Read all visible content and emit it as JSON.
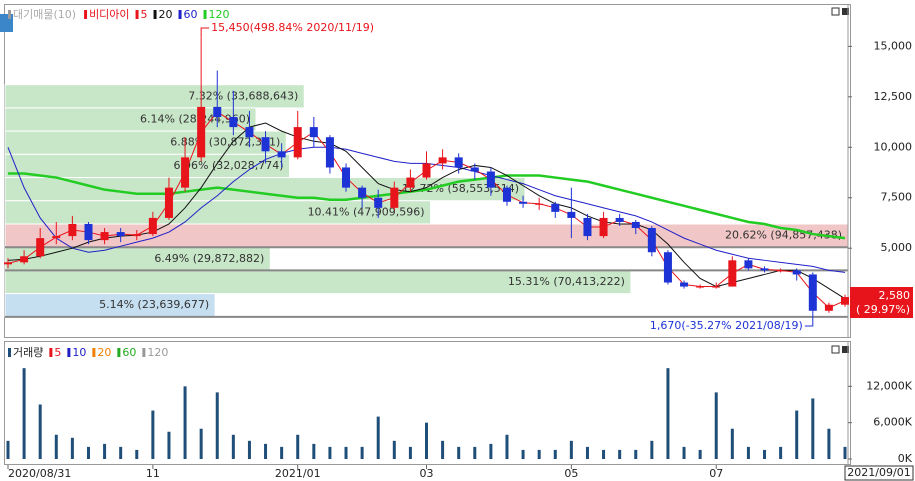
{
  "chart_data": {
    "type": "candlestick",
    "legend_title": "대기매물(10)",
    "name": "비디아이",
    "categories": [
      "2020/08/31",
      null,
      null,
      null,
      null,
      null,
      null,
      null,
      null,
      "11",
      null,
      null,
      null,
      null,
      null,
      null,
      null,
      null,
      "2021/01",
      null,
      null,
      null,
      null,
      null,
      null,
      null,
      "03",
      null,
      null,
      null,
      null,
      null,
      null,
      null,
      null,
      "05",
      null,
      null,
      null,
      null,
      null,
      null,
      null,
      null,
      "07",
      null,
      null,
      null,
      null,
      null,
      null,
      null,
      "2021/09/01"
    ],
    "candles": [
      [
        4200,
        4500,
        4000,
        4300
      ],
      [
        4300,
        4900,
        4200,
        4600
      ],
      [
        4600,
        6000,
        4500,
        5500
      ],
      [
        5500,
        6300,
        5200,
        5600
      ],
      [
        5600,
        6600,
        5400,
        6200
      ],
      [
        6200,
        6300,
        5200,
        5400
      ],
      [
        5400,
        6000,
        5200,
        5800
      ],
      [
        5800,
        6000,
        5300,
        5600
      ],
      [
        5600,
        5900,
        5400,
        5700
      ],
      [
        5700,
        6800,
        5600,
        6500
      ],
      [
        6500,
        8500,
        6400,
        8000
      ],
      [
        8000,
        10500,
        7800,
        9500
      ],
      [
        9500,
        15450,
        9300,
        12000
      ],
      [
        12000,
        13800,
        11000,
        11500
      ],
      [
        11500,
        12800,
        10600,
        11000
      ],
      [
        11000,
        11800,
        10000,
        10500
      ],
      [
        10500,
        10800,
        9200,
        9800
      ],
      [
        9800,
        10200,
        9000,
        9500
      ],
      [
        9500,
        11800,
        9400,
        11000
      ],
      [
        11000,
        11500,
        10000,
        10500
      ],
      [
        10500,
        10600,
        8700,
        9000
      ],
      [
        9000,
        9200,
        7800,
        8000
      ],
      [
        8000,
        8100,
        7000,
        7500
      ],
      [
        7500,
        7900,
        6500,
        7000
      ],
      [
        7000,
        8300,
        6900,
        8000
      ],
      [
        8000,
        8900,
        7800,
        8500
      ],
      [
        8500,
        9800,
        8400,
        9200
      ],
      [
        9200,
        9900,
        8900,
        9500
      ],
      [
        9500,
        9700,
        8700,
        9000
      ],
      [
        9000,
        9200,
        8400,
        8800
      ],
      [
        8800,
        9000,
        7600,
        8000
      ],
      [
        8000,
        8100,
        7100,
        7300
      ],
      [
        7300,
        7600,
        7000,
        7200
      ],
      [
        7200,
        7500,
        6900,
        7200
      ],
      [
        7200,
        7300,
        6500,
        6800
      ],
      [
        6800,
        8000,
        5500,
        6500
      ],
      [
        6500,
        6700,
        5400,
        5600
      ],
      [
        5600,
        6800,
        5500,
        6500
      ],
      [
        6500,
        6700,
        6100,
        6300
      ],
      [
        6300,
        6400,
        5700,
        6000
      ],
      [
        6000,
        6100,
        4600,
        4800
      ],
      [
        4800,
        4900,
        3200,
        3300
      ],
      [
        3300,
        3400,
        3000,
        3100
      ],
      [
        3100,
        3200,
        3000,
        3100
      ],
      [
        3100,
        3300,
        3000,
        3100
      ],
      [
        3100,
        4600,
        3100,
        4400
      ],
      [
        4400,
        4500,
        3900,
        4000
      ],
      [
        4000,
        4100,
        3800,
        3900
      ],
      [
        3900,
        4000,
        3800,
        3900
      ],
      [
        3900,
        4000,
        3400,
        3700
      ],
      [
        3700,
        3800,
        1670,
        1900
      ],
      [
        1900,
        2300,
        1800,
        2200
      ],
      [
        2200,
        2700,
        2100,
        2580
      ]
    ],
    "up_color": "#e8141b",
    "down_color": "#1d33d6",
    "series": [
      {
        "name": "5",
        "color": "#e8141b",
        "values": [
          4250,
          4450,
          5050,
          5550,
          5900,
          5800,
          5600,
          5700,
          5650,
          6100,
          7250,
          8750,
          10750,
          11750,
          11250,
          10750,
          10150,
          9650,
          10250,
          10750,
          9750,
          8500,
          7750,
          7250,
          7500,
          8250,
          8850,
          9350,
          9250,
          8900,
          8400,
          7650,
          7250,
          7200,
          7000,
          6650,
          6050,
          6050,
          6400,
          6150,
          5400,
          4050,
          3200,
          3100,
          3100,
          3750,
          4200,
          3950,
          3900,
          3800,
          2800,
          2050,
          2400
        ]
      },
      {
        "name": "20",
        "color": "#111111",
        "values": [
          4400,
          4450,
          4600,
          4800,
          5000,
          5300,
          5500,
          5600,
          5650,
          5800,
          6200,
          7000,
          8000,
          9200,
          10300,
          11000,
          11200,
          10800,
          10500,
          10300,
          10200,
          9800,
          9000,
          8200,
          7900,
          7800,
          8000,
          8500,
          8900,
          9100,
          9000,
          8600,
          8100,
          7600,
          7200,
          7000,
          6600,
          6300,
          6200,
          6200,
          5900,
          5200,
          4300,
          3500,
          3100,
          3300,
          3500,
          3700,
          3900,
          3900,
          3500,
          3000,
          2500
        ]
      },
      {
        "name": "60",
        "color": "#2020c8",
        "values": [
          10000,
          8000,
          6500,
          5500,
          5000,
          4800,
          4900,
          5100,
          5300,
          5500,
          5800,
          6300,
          7000,
          7600,
          8300,
          8900,
          9400,
          9700,
          9900,
          10000,
          10000,
          9900,
          9700,
          9500,
          9300,
          9200,
          9200,
          9100,
          9000,
          8800,
          8600,
          8400,
          8200,
          7900,
          7600,
          7400,
          7200,
          7000,
          6800,
          6600,
          6300,
          5900,
          5500,
          5200,
          4900,
          4700,
          4500,
          4400,
          4300,
          4200,
          4100,
          3900,
          3800
        ]
      },
      {
        "name": "120",
        "color": "#22cc22",
        "values": [
          8700,
          8700,
          8600,
          8500,
          8300,
          8100,
          7900,
          7800,
          7700,
          7700,
          7700,
          7800,
          7900,
          8000,
          7900,
          7800,
          7700,
          7600,
          7500,
          7500,
          7400,
          7400,
          7500,
          7600,
          7700,
          7800,
          7900,
          8100,
          8300,
          8400,
          8500,
          8600,
          8600,
          8600,
          8500,
          8400,
          8300,
          8100,
          7900,
          7700,
          7500,
          7300,
          7100,
          6900,
          6700,
          6500,
          6300,
          6200,
          6000,
          5900,
          5700,
          5600,
          5500
        ]
      }
    ],
    "ylim": [
      700,
      16900
    ],
    "yticks": [
      {
        "value": 5000,
        "label": "5,000"
      },
      {
        "value": 7500,
        "label": "7,500"
      },
      {
        "value": 10000,
        "label": "10,000"
      },
      {
        "value": 12500,
        "label": "12,500"
      },
      {
        "value": 15000,
        "label": "15,000"
      }
    ],
    "volume_profile": [
      {
        "label": "7.32% (33,688,643)",
        "pct": 7.32,
        "volume": 33688643,
        "low": 11950,
        "high": 13100,
        "color": "#c8e6c8"
      },
      {
        "label": "6.14% (28,244,960)",
        "pct": 6.14,
        "volume": 28244960,
        "low": 10800,
        "high": 11950,
        "color": "#c8e6c8"
      },
      {
        "label": "6.88% (30,872,321)",
        "pct": 6.88,
        "volume": 30872321,
        "low": 9650,
        "high": 10800,
        "color": "#c8e6c8"
      },
      {
        "label": "6.96% (32,028,774)",
        "pct": 6.96,
        "volume": 32028774,
        "low": 8500,
        "high": 9650,
        "color": "#c8e6c8"
      },
      {
        "label": "12.72% (58,553,514)",
        "pct": 12.72,
        "volume": 58553514,
        "low": 7350,
        "high": 8500,
        "color": "#c8e6c8"
      },
      {
        "label": "10.41% (47,909,596)",
        "pct": 10.41,
        "volume": 47909596,
        "low": 6200,
        "high": 7350,
        "color": "#c8e6c8"
      },
      {
        "label": "20.62% (94,857,438)",
        "pct": 20.62,
        "volume": 94857438,
        "low": 5050,
        "high": 6200,
        "color": "#f1c6c6"
      },
      {
        "label": "6.49% (29,872,882)",
        "pct": 6.49,
        "volume": 29872882,
        "low": 3900,
        "high": 5050,
        "color": "#c8e6c8"
      },
      {
        "label": "15.31% (70,413,222)",
        "pct": 15.31,
        "volume": 70413222,
        "low": 2750,
        "high": 3900,
        "color": "#c8e6c8"
      },
      {
        "label": "5.14% (23,639,677)",
        "pct": 5.14,
        "volume": 23639677,
        "low": 1600,
        "high": 2750,
        "color": "#c6dff0"
      }
    ],
    "levels": [
      5050,
      3900,
      1600
    ],
    "high_annotation": "15,450(498.84% 2020/11/19)",
    "low_annotation": "1,670(-35.27% 2021/08/19)",
    "last_price": "2,580",
    "last_change": "( 29.97%)",
    "volume": {
      "title": "거래량",
      "color": "#1f4e79",
      "legend": [
        {
          "name": "5",
          "color": "#e8141b"
        },
        {
          "name": "10",
          "color": "#2020c8"
        },
        {
          "name": "20",
          "color": "#f08000"
        },
        {
          "name": "60",
          "color": "#22aa22"
        },
        {
          "name": "120",
          "color": "#999999"
        }
      ],
      "values": [
        3000000,
        15000000,
        9000000,
        4000000,
        3500000,
        2000000,
        2500000,
        2000000,
        1500000,
        8000000,
        4500000,
        12000000,
        5000000,
        11000000,
        4000000,
        3000000,
        2500000,
        2000000,
        4000000,
        2500000,
        2000000,
        2000000,
        2000000,
        7000000,
        3000000,
        2000000,
        6000000,
        3000000,
        2000000,
        2000000,
        2500000,
        4000000,
        1500000,
        1500000,
        1500000,
        3000000,
        2000000,
        1500000,
        1500000,
        1500000,
        3000000,
        15000000,
        2000000,
        1500000,
        11000000,
        5000000,
        2000000,
        1500000,
        2000000,
        8000000,
        10000000,
        5000000,
        2000000
      ],
      "ylim": [
        0,
        18000000
      ],
      "yticks": [
        {
          "value": 0,
          "label": "0K"
        },
        {
          "value": 6000000,
          "label": "6,000K"
        },
        {
          "value": 12000000,
          "label": "12,000K"
        }
      ]
    }
  }
}
